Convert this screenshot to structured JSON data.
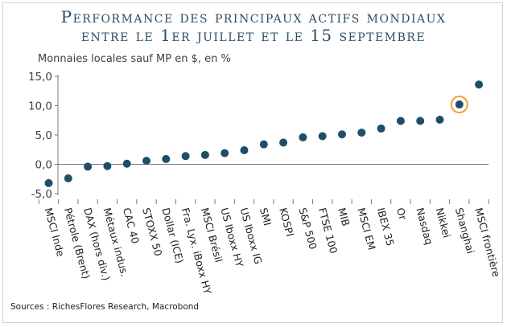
{
  "title_line1": "Performance des principaux actifs mondiaux",
  "title_line2": "entre le 1er juillet et le 15 septembre",
  "subtitle": "Monnaies locales sauf MP en $, en %",
  "source": "Sources : RichesFlores Research, Macrobond",
  "colors": {
    "marker": "#1f4e66",
    "highlight": "#f0a030",
    "title": "#2c4e62"
  },
  "chart_data": {
    "type": "scatter",
    "title": "Performance des principaux actifs mondiaux entre le 1er juillet et le 15 septembre",
    "ylabel": "Monnaies locales sauf MP en $, en %",
    "ylim": [
      -5,
      15
    ],
    "yticks": [
      15,
      10,
      5,
      0,
      -5
    ],
    "ytick_labels": [
      "15,0",
      "10,0",
      "5,0",
      "0,0",
      "-5,0"
    ],
    "grid": false,
    "categories": [
      "MSCI Inde",
      "Pétrole (Brent)",
      "DAX (hors div.)",
      "Métaux indus.",
      "CAC 40",
      "STOXX 50",
      "Dollar (ICE)",
      "Fra. Lyx. iBoxx HY",
      "MSCI Brésil",
      "US Iboxx HY",
      "US Iboxx IG",
      "SMI",
      "KOSPI",
      "S&P 500",
      "FTSE 100",
      "MIB",
      "MSCI EM",
      "IBEX 35",
      "Or",
      "Nasdaq",
      "Nikkei",
      "Shanghai",
      "MSCI frontière"
    ],
    "values": [
      -3.2,
      -2.4,
      -0.4,
      -0.3,
      0.1,
      0.6,
      0.9,
      1.4,
      1.6,
      1.9,
      2.4,
      3.4,
      3.7,
      4.6,
      4.8,
      5.1,
      5.4,
      6.1,
      7.4,
      7.4,
      7.6,
      10.2,
      13.6
    ],
    "highlighted": "Shanghai"
  }
}
